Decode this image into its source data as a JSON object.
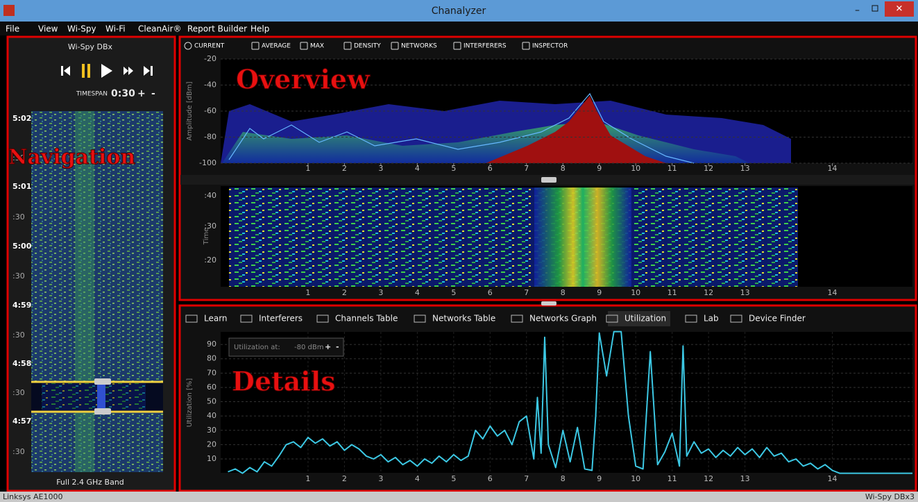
{
  "window": {
    "title": "Chanalyzer"
  },
  "menu": [
    "File",
    "View",
    "Wi-Spy",
    "Wi-Fi",
    "CleanAir®",
    "Report Builder",
    "Help"
  ],
  "navigation": {
    "label": "Navigation",
    "device": "Wi-Spy DBx",
    "timespan_label": "TIMESPAN",
    "timespan": "0:30",
    "plus": "+",
    "minus": "-",
    "time_labels": [
      "5:02",
      ":30",
      "5:01",
      ":30",
      "5:00",
      ":30",
      "4:59",
      ":30",
      "4:58",
      ":30",
      "4:57",
      ":30"
    ],
    "band": "Full 2.4 GHz Band"
  },
  "overview": {
    "label": "Overview",
    "toolbar": [
      "CURRENT",
      "AVERAGE",
      "MAX",
      "DENSITY",
      "NETWORKS",
      "INTERFERERS",
      "INSPECTOR"
    ],
    "spectrum": {
      "ylabel": "Amplitude [dBm]",
      "ylim": [
        -100,
        -20
      ],
      "yticks": [
        -20,
        -40,
        -60,
        -80,
        -100
      ]
    },
    "waterfall": {
      "ylabel": "Time",
      "ticks": [
        ":40",
        ":30",
        ":20"
      ]
    }
  },
  "details": {
    "label": "Details",
    "tabs": [
      "Learn",
      "Interferers",
      "Channels Table",
      "Networks Table",
      "Networks Graph",
      "Utilization",
      "Lab",
      "Device Finder"
    ],
    "utilization_at": {
      "label": "Utilization at:",
      "value": "-80 dBm",
      "plus": "+",
      "minus": "-"
    }
  },
  "chart_data": {
    "type": "line",
    "ylabel": "Utilization [%]",
    "x": [
      2401,
      2402,
      2403,
      2404,
      2405,
      2406,
      2407,
      2408,
      2409,
      2410,
      2411,
      2412,
      2413,
      2414,
      2415,
      2416,
      2417,
      2418,
      2419,
      2420,
      2421,
      2422,
      2423,
      2424,
      2425,
      2426,
      2427,
      2428,
      2429,
      2430,
      2431,
      2432,
      2433,
      2434,
      2435,
      2436,
      2437,
      2438,
      2439,
      2440,
      2441,
      2442,
      2443,
      2443.5,
      2444,
      2444.5,
      2445,
      2446,
      2447,
      2448,
      2449,
      2450,
      2451,
      2451.5,
      2452,
      2453,
      2454,
      2455,
      2456,
      2457,
      2458,
      2459,
      2460,
      2461,
      2462,
      2463,
      2463.5,
      2464,
      2465,
      2466,
      2467,
      2468,
      2469,
      2470,
      2471,
      2472,
      2473,
      2474,
      2475,
      2476,
      2477,
      2478,
      2479,
      2480,
      2481,
      2482,
      2483,
      2484,
      2485,
      2495
    ],
    "series": [
      {
        "color": "#3cc8e4",
        "values": [
          1,
          3,
          0,
          4,
          1,
          8,
          5,
          12,
          20,
          22,
          18,
          25,
          21,
          24,
          19,
          22,
          16,
          20,
          17,
          12,
          10,
          13,
          8,
          11,
          6,
          9,
          5,
          10,
          7,
          12,
          8,
          13,
          9,
          12,
          30,
          24,
          33,
          26,
          30,
          20,
          36,
          40,
          10,
          53,
          14,
          95,
          20,
          4,
          30,
          8,
          32,
          3,
          2,
          40,
          98,
          68,
          99,
          99,
          40,
          5,
          3,
          85,
          6,
          15,
          28,
          5,
          89,
          12,
          22,
          14,
          17,
          11,
          16,
          12,
          18,
          13,
          17,
          11,
          18,
          12,
          14,
          8,
          10,
          5,
          7,
          3,
          6,
          2,
          0,
          0
        ]
      }
    ],
    "xlim": [
      2400,
      2495
    ],
    "xticks": [
      {
        "value": 2412,
        "label": "1"
      },
      {
        "value": 2417,
        "label": "2"
      },
      {
        "value": 2422,
        "label": "3"
      },
      {
        "value": 2427,
        "label": "4"
      },
      {
        "value": 2432,
        "label": "5"
      },
      {
        "value": 2437,
        "label": "6"
      },
      {
        "value": 2442,
        "label": "7"
      },
      {
        "value": 2447,
        "label": "8"
      },
      {
        "value": 2452,
        "label": "9"
      },
      {
        "value": 2457,
        "label": "10"
      },
      {
        "value": 2462,
        "label": "11"
      },
      {
        "value": 2467,
        "label": "12"
      },
      {
        "value": 2472,
        "label": "13"
      },
      {
        "value": 2484,
        "label": "14"
      }
    ],
    "ylim": [
      0,
      100
    ],
    "yticks": [
      10,
      20,
      30,
      40,
      50,
      60,
      70,
      80,
      90
    ],
    "grid": true
  },
  "status": {
    "left": "Linksys AE1000",
    "right": "Wi-Spy DBx3"
  }
}
